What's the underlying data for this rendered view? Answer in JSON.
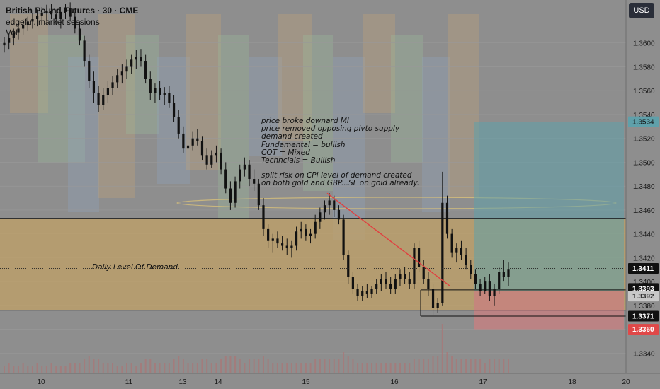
{
  "header": {
    "title": "British Pound Futures · 30 · CME",
    "line2": "edgeful. market sessions",
    "line3": "Vol"
  },
  "currency_button": {
    "label": "USD"
  },
  "annotation": {
    "lines": [
      "price broke downard MI",
      "price removed opposing pivto supply",
      "demand created",
      "Fundamental = bullish",
      "COT = Mixed",
      "Techncials = Bullish",
      "",
      "split risk on CPI level of demand created",
      "on both gold and GBP...SL on gold already."
    ]
  },
  "zone_label": "Daily Level Of Demand",
  "colors": {
    "background": "#8e8e8e",
    "demand_zone": "#c4a265",
    "candle_up": "#111111",
    "candle_down": "#111111",
    "take_profit_zone": "#5fa0aa",
    "stop_loss_zone": "#c97f80",
    "trend_line": "#e04040",
    "session_box_blue": "#8fa3bd",
    "session_box_orange": "#c2a277",
    "session_box_green": "#9ab99b"
  },
  "chart_data": {
    "type": "candlestick",
    "symbol": "British Pound Futures",
    "timeframe": "30",
    "exchange": "CME",
    "y_axis": {
      "range": [
        1.3323,
        1.3636
      ],
      "ticks": [
        "1.3340",
        "1.3360",
        "1.3380",
        "1.3400",
        "1.3420",
        "1.3440",
        "1.3460",
        "1.3480",
        "1.3500",
        "1.3520",
        "1.3540",
        "1.3560",
        "1.3580",
        "1.3600"
      ],
      "tick_values": [
        1.334,
        1.336,
        1.338,
        1.34,
        1.342,
        1.344,
        1.346,
        1.348,
        1.35,
        1.352,
        1.354,
        1.356,
        1.358,
        1.36
      ]
    },
    "x_axis": {
      "labels": [
        "10",
        "11",
        "13",
        "14",
        "15",
        "16",
        "17",
        "18",
        "20"
      ]
    },
    "price_labels": [
      {
        "text": "1.3534",
        "value": 1.3534,
        "style": "tp"
      },
      {
        "text": "1.3411",
        "value": 1.3411,
        "style": "current"
      },
      {
        "text": "1.3393",
        "value": 1.3393,
        "style": "line"
      },
      {
        "text": "1.3392",
        "value": 1.3392,
        "style": "entry"
      },
      {
        "text": "1.3371",
        "value": 1.3371,
        "style": "line"
      },
      {
        "text": "1.3360",
        "value": 1.336,
        "style": "sl"
      }
    ],
    "demand_zone": {
      "top": 1.3453,
      "bottom": 1.3376
    },
    "horizontal_lines": [
      1.3453,
      1.3376,
      1.3393,
      1.3371
    ],
    "current_price": 1.3411,
    "position": {
      "entry": 1.3392,
      "take_profit": 1.3534,
      "stop_loss": 1.336
    },
    "trend_line": {
      "start": 1.3474,
      "end": 1.3396
    },
    "candles_ohlc": [
      [
        1.3598,
        1.3605,
        1.3592,
        1.36
      ],
      [
        1.36,
        1.3608,
        1.3595,
        1.3604
      ],
      [
        1.3604,
        1.3612,
        1.3598,
        1.3609
      ],
      [
        1.3609,
        1.3616,
        1.3603,
        1.3612
      ],
      [
        1.3612,
        1.362,
        1.3607,
        1.3615
      ],
      [
        1.3615,
        1.3622,
        1.361,
        1.3618
      ],
      [
        1.3618,
        1.3625,
        1.3612,
        1.362
      ],
      [
        1.362,
        1.3628,
        1.3614,
        1.3623
      ],
      [
        1.3623,
        1.363,
        1.3617,
        1.3625
      ],
      [
        1.3625,
        1.3632,
        1.3618,
        1.3627
      ],
      [
        1.3627,
        1.3633,
        1.362,
        1.3624
      ],
      [
        1.3624,
        1.3628,
        1.3615,
        1.362
      ],
      [
        1.362,
        1.3625,
        1.3612,
        1.3626
      ],
      [
        1.3626,
        1.3633,
        1.362,
        1.3629
      ],
      [
        1.3629,
        1.3634,
        1.3618,
        1.3622
      ],
      [
        1.3622,
        1.3626,
        1.3608,
        1.3612
      ],
      [
        1.3612,
        1.3618,
        1.3598,
        1.3602
      ],
      [
        1.3602,
        1.3606,
        1.358,
        1.3585
      ],
      [
        1.3585,
        1.359,
        1.3562,
        1.3568
      ],
      [
        1.3568,
        1.3576,
        1.355,
        1.3558
      ],
      [
        1.3558,
        1.3564,
        1.3542,
        1.3548
      ],
      [
        1.3548,
        1.3562,
        1.3544,
        1.3556
      ],
      [
        1.3556,
        1.3568,
        1.355,
        1.3562
      ],
      [
        1.3562,
        1.3572,
        1.3556,
        1.3567
      ],
      [
        1.3567,
        1.3578,
        1.3562,
        1.3573
      ],
      [
        1.3573,
        1.3582,
        1.3566,
        1.3576
      ],
      [
        1.3576,
        1.3586,
        1.357,
        1.358
      ],
      [
        1.358,
        1.359,
        1.3574,
        1.3586
      ],
      [
        1.3586,
        1.3594,
        1.3578,
        1.3588
      ],
      [
        1.3588,
        1.3595,
        1.358,
        1.3585
      ],
      [
        1.3585,
        1.359,
        1.3566,
        1.357
      ],
      [
        1.357,
        1.3576,
        1.3552,
        1.3558
      ],
      [
        1.3558,
        1.3566,
        1.355,
        1.3562
      ],
      [
        1.3562,
        1.3568,
        1.3552,
        1.3556
      ],
      [
        1.3556,
        1.3563,
        1.3548,
        1.3558
      ],
      [
        1.3558,
        1.3564,
        1.3546,
        1.355
      ],
      [
        1.355,
        1.3556,
        1.3534,
        1.3538
      ],
      [
        1.3538,
        1.3544,
        1.352,
        1.3524
      ],
      [
        1.3524,
        1.353,
        1.3508,
        1.3512
      ],
      [
        1.3512,
        1.352,
        1.3502,
        1.3514
      ],
      [
        1.3514,
        1.3526,
        1.351,
        1.352
      ],
      [
        1.352,
        1.3528,
        1.3514,
        1.3518
      ],
      [
        1.3518,
        1.3522,
        1.3502,
        1.3506
      ],
      [
        1.3506,
        1.3512,
        1.3494,
        1.3498
      ],
      [
        1.3498,
        1.351,
        1.3495,
        1.3506
      ],
      [
        1.3506,
        1.3514,
        1.35,
        1.3508
      ],
      [
        1.3508,
        1.3512,
        1.349,
        1.3494
      ],
      [
        1.3494,
        1.35,
        1.3474,
        1.3478
      ],
      [
        1.3478,
        1.3484,
        1.346,
        1.3466
      ],
      [
        1.3466,
        1.3488,
        1.3462,
        1.3484
      ],
      [
        1.3484,
        1.3498,
        1.3478,
        1.3494
      ],
      [
        1.3494,
        1.3504,
        1.3488,
        1.3498
      ],
      [
        1.3498,
        1.3502,
        1.348,
        1.3486
      ],
      [
        1.3486,
        1.3494,
        1.3476,
        1.3482
      ],
      [
        1.3482,
        1.3486,
        1.346,
        1.3464
      ],
      [
        1.3464,
        1.347,
        1.3438,
        1.3444
      ],
      [
        1.3444,
        1.3448,
        1.3428,
        1.3434
      ],
      [
        1.3434,
        1.344,
        1.3424,
        1.3436
      ],
      [
        1.3436,
        1.3442,
        1.3428,
        1.3432
      ],
      [
        1.3432,
        1.3438,
        1.3426,
        1.343
      ],
      [
        1.343,
        1.3436,
        1.3422,
        1.3428
      ],
      [
        1.3428,
        1.3434,
        1.342,
        1.343
      ],
      [
        1.343,
        1.3446,
        1.3426,
        1.3442
      ],
      [
        1.3442,
        1.345,
        1.3436,
        1.3444
      ],
      [
        1.3444,
        1.3448,
        1.3434,
        1.3438
      ],
      [
        1.3438,
        1.3444,
        1.3432,
        1.344
      ],
      [
        1.344,
        1.3456,
        1.3436,
        1.345
      ],
      [
        1.345,
        1.3462,
        1.3444,
        1.3458
      ],
      [
        1.3458,
        1.3468,
        1.3452,
        1.3464
      ],
      [
        1.3464,
        1.3474,
        1.3456,
        1.3468
      ],
      [
        1.3468,
        1.3472,
        1.3454,
        1.346
      ],
      [
        1.346,
        1.3464,
        1.3448,
        1.3452
      ],
      [
        1.3452,
        1.3456,
        1.3418,
        1.3422
      ],
      [
        1.3422,
        1.3426,
        1.3398,
        1.3404
      ],
      [
        1.3404,
        1.3408,
        1.339,
        1.3394
      ],
      [
        1.3394,
        1.3398,
        1.3384,
        1.3388
      ],
      [
        1.3388,
        1.3396,
        1.3384,
        1.3392
      ],
      [
        1.3392,
        1.3398,
        1.3386,
        1.339
      ],
      [
        1.339,
        1.3396,
        1.3386,
        1.3394
      ],
      [
        1.3394,
        1.3402,
        1.339,
        1.3398
      ],
      [
        1.3398,
        1.3406,
        1.3392,
        1.3402
      ],
      [
        1.3402,
        1.3408,
        1.3394,
        1.3398
      ],
      [
        1.3398,
        1.3404,
        1.339,
        1.3394
      ],
      [
        1.3394,
        1.3406,
        1.339,
        1.3402
      ],
      [
        1.3402,
        1.341,
        1.3396,
        1.3406
      ],
      [
        1.3406,
        1.3412,
        1.3398,
        1.3402
      ],
      [
        1.3402,
        1.3408,
        1.3394,
        1.3398
      ],
      [
        1.3398,
        1.3432,
        1.3394,
        1.3428
      ],
      [
        1.3428,
        1.3434,
        1.3408,
        1.3412
      ],
      [
        1.3412,
        1.3418,
        1.3398,
        1.3402
      ],
      [
        1.3402,
        1.3408,
        1.3388,
        1.3394
      ],
      [
        1.3394,
        1.3398,
        1.3372,
        1.3378
      ],
      [
        1.3378,
        1.3386,
        1.3374,
        1.3382
      ],
      [
        1.3382,
        1.3492,
        1.338,
        1.3466
      ],
      [
        1.3466,
        1.3472,
        1.3436,
        1.344
      ],
      [
        1.344,
        1.3444,
        1.342,
        1.3424
      ],
      [
        1.3424,
        1.3432,
        1.3416,
        1.3428
      ],
      [
        1.3428,
        1.3434,
        1.3418,
        1.3422
      ],
      [
        1.3422,
        1.3428,
        1.341,
        1.3414
      ],
      [
        1.3414,
        1.3418,
        1.3402,
        1.3406
      ],
      [
        1.3406,
        1.341,
        1.3394,
        1.3398
      ],
      [
        1.3398,
        1.3402,
        1.3388,
        1.3392
      ],
      [
        1.3392,
        1.3404,
        1.339,
        1.34
      ],
      [
        1.34,
        1.3406,
        1.3384,
        1.3388
      ],
      [
        1.3388,
        1.3398,
        1.338,
        1.3394
      ],
      [
        1.3394,
        1.3412,
        1.339,
        1.3408
      ],
      [
        1.3408,
        1.3418,
        1.34,
        1.3404
      ],
      [
        1.3404,
        1.3416,
        1.3396,
        1.341
      ]
    ],
    "volume": [
      2,
      3,
      2,
      2,
      3,
      2,
      2,
      3,
      2,
      2,
      3,
      2,
      2,
      2,
      3,
      3,
      3,
      4,
      5,
      4,
      4,
      3,
      3,
      3,
      2,
      2,
      3,
      3,
      2,
      3,
      4,
      4,
      3,
      3,
      3,
      3,
      4,
      5,
      4,
      3,
      3,
      3,
      4,
      4,
      3,
      3,
      4,
      5,
      5,
      5,
      4,
      3,
      4,
      4,
      4,
      5,
      4,
      3,
      3,
      3,
      3,
      3,
      3,
      3,
      3,
      3,
      4,
      4,
      4,
      4,
      4,
      4,
      6,
      5,
      4,
      3,
      3,
      3,
      3,
      3,
      3,
      3,
      3,
      3,
      3,
      3,
      3,
      4,
      4,
      4,
      4,
      5,
      5,
      14,
      6,
      5,
      4,
      4,
      4,
      4,
      4,
      4,
      3,
      4,
      4,
      4,
      4,
      4
    ]
  }
}
